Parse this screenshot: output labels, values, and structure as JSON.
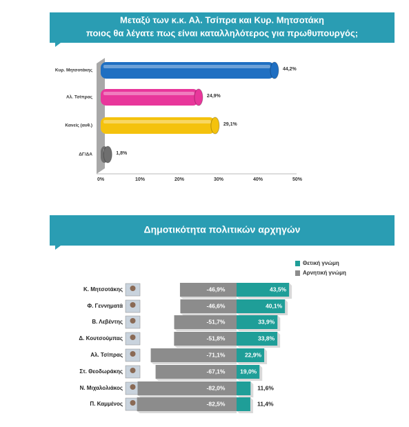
{
  "chart_data": [
    {
      "type": "hbar3d",
      "title": [
        "Μεταξύ των κ.κ. Αλ. Τσίπρα και Κυρ. Μητσοτάκη",
        "ποιος θα λέγατε πως είναι καταλληλότερος για πρωθυπουργός;"
      ],
      "categories": [
        "Κυρ. Μητσοτάκης",
        "Αλ. Τσίπρας",
        "Κανείς (αυθ.)",
        "ΔΓ/ΔΑ"
      ],
      "values": [
        44.2,
        24.9,
        29.1,
        1.8
      ],
      "value_labels": [
        "44,2%",
        "24,9%",
        "29,1%",
        "1,8%"
      ],
      "colors": [
        "#1f6fc2",
        "#e8379b",
        "#f4c20d",
        "#6f6f6f"
      ],
      "xlim": [
        0,
        50
      ],
      "xticks": [
        {
          "value": 0,
          "label": "0%"
        },
        {
          "value": 10,
          "label": "10%"
        },
        {
          "value": 20,
          "label": "20%"
        },
        {
          "value": 30,
          "label": "30%"
        },
        {
          "value": 40,
          "label": "40%"
        },
        {
          "value": 50,
          "label": "50%"
        }
      ]
    },
    {
      "type": "diverging",
      "title": "Δημοτικότητα πολιτικών αρχηγών",
      "categories": [
        "Κ. Μητσοτάκης",
        "Φ. Γεννηματά",
        "Β. Λεβέντης",
        "Δ. Κουτσούμπας",
        "Αλ. Τσίπρας",
        "Στ. Θεοδωράκης",
        "Ν. Μιχαλολιάκος",
        "Π. Καμμένος"
      ],
      "series": [
        {
          "name": "Θετική γνώμη",
          "color": "#1f9e98",
          "values": [
            43.5,
            40.1,
            33.9,
            33.8,
            22.9,
            19.0,
            11.6,
            11.4
          ],
          "value_labels": [
            "43,5%",
            "40,1%",
            "33,9%",
            "33,8%",
            "22,9%",
            "19,0%",
            "11,6%",
            "11,4%"
          ]
        },
        {
          "name": "Αρνητική γνώμη",
          "color": "#8c8c8c",
          "values": [
            -46.9,
            -46.6,
            -51.7,
            -51.8,
            -71.1,
            -67.1,
            -82.0,
            -82.5
          ],
          "value_labels": [
            "-46,9%",
            "-46,6%",
            "-51,7%",
            "-51,8%",
            "-71,1%",
            "-67,1%",
            "-82,0%",
            "-82,5%"
          ]
        }
      ]
    }
  ]
}
